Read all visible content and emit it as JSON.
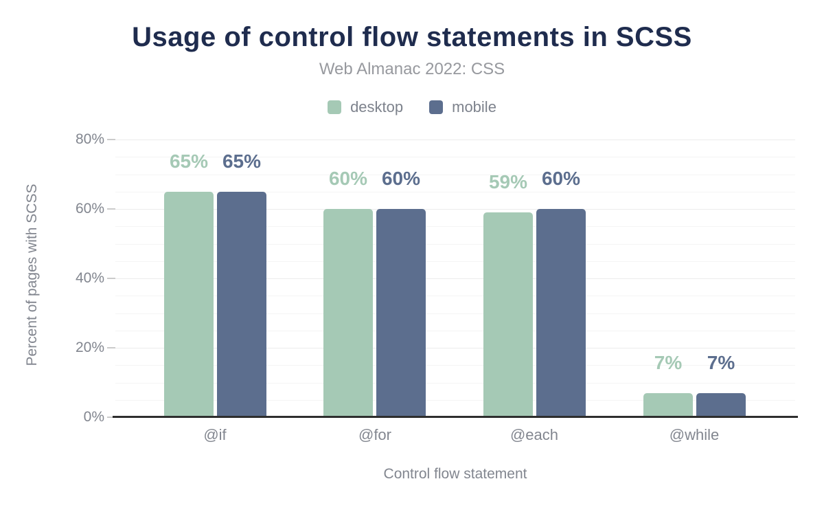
{
  "header": {
    "title": "Usage of control flow statements in SCSS",
    "subtitle": "Web Almanac 2022: CSS"
  },
  "legend": {
    "items": [
      {
        "label": "desktop",
        "color": "#a5c9b5"
      },
      {
        "label": "mobile",
        "color": "#5c6e8e"
      }
    ]
  },
  "colors": {
    "title": "#1f2c4e",
    "subtitle_text": "#97999e",
    "axis_text": "#82868f",
    "desktop": "#a5c9b5",
    "mobile": "#5c6e8e",
    "baseline": "#2e2e2e",
    "gridline": "#ececec"
  },
  "chart_data": {
    "type": "bar",
    "title": "Usage of control flow statements in SCSS",
    "subtitle": "Web Almanac 2022: CSS",
    "categories": [
      "@if",
      "@for",
      "@each",
      "@while"
    ],
    "series": [
      {
        "name": "desktop",
        "color": "#a5c9b5",
        "values": [
          65,
          60,
          59,
          7
        ],
        "labels": [
          "65%",
          "60%",
          "59%",
          "7%"
        ]
      },
      {
        "name": "mobile",
        "color": "#5c6e8e",
        "values": [
          65,
          60,
          60,
          7
        ],
        "labels": [
          "65%",
          "60%",
          "60%",
          "7%"
        ]
      }
    ],
    "xlabel": "Control flow statement",
    "ylabel": "Percent of pages with SCSS",
    "ylim": [
      0,
      80
    ],
    "yticks": [
      {
        "value": 0,
        "label": "0%"
      },
      {
        "value": 20,
        "label": "20%"
      },
      {
        "value": 40,
        "label": "40%"
      },
      {
        "value": 60,
        "label": "60%"
      },
      {
        "value": 80,
        "label": "80%"
      }
    ],
    "grid": "horizontal minor lines every 5%",
    "legend_position": "top"
  }
}
